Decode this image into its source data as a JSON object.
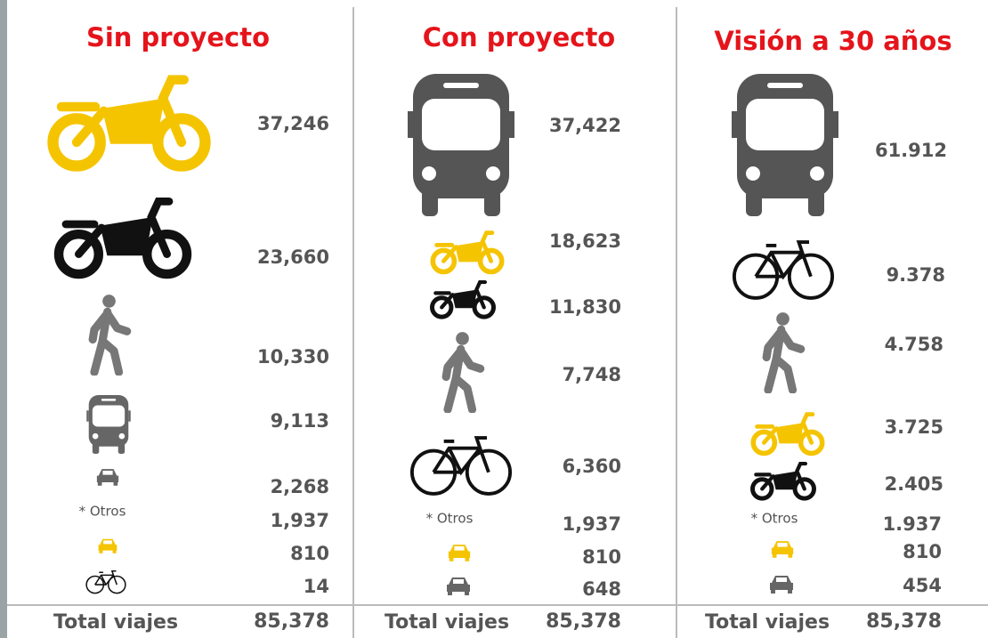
{
  "columns": [
    {
      "title": "Sin proyecto",
      "values": [
        "37,246",
        "23,660",
        "10,330",
        "9,113",
        "2,268",
        "1,937",
        "810",
        "14"
      ],
      "otros": "* Otros",
      "total_label": "Total viajes",
      "total": "85,378"
    },
    {
      "title": "Con proyecto",
      "values": [
        "37,422",
        "18,623",
        "11,830",
        "7,748",
        "6,360",
        "1,937",
        "810",
        "648"
      ],
      "otros": "* Otros",
      "total_label": "Total viajes",
      "total": "85,378"
    },
    {
      "title": "Visión a 30 años",
      "values": [
        "61.912",
        "9.378",
        "4.758",
        "3.725",
        "2.405",
        "1.937",
        "810",
        "454"
      ],
      "otros": "* Otros",
      "total_label": "Total viajes",
      "total": "85,378"
    }
  ]
}
